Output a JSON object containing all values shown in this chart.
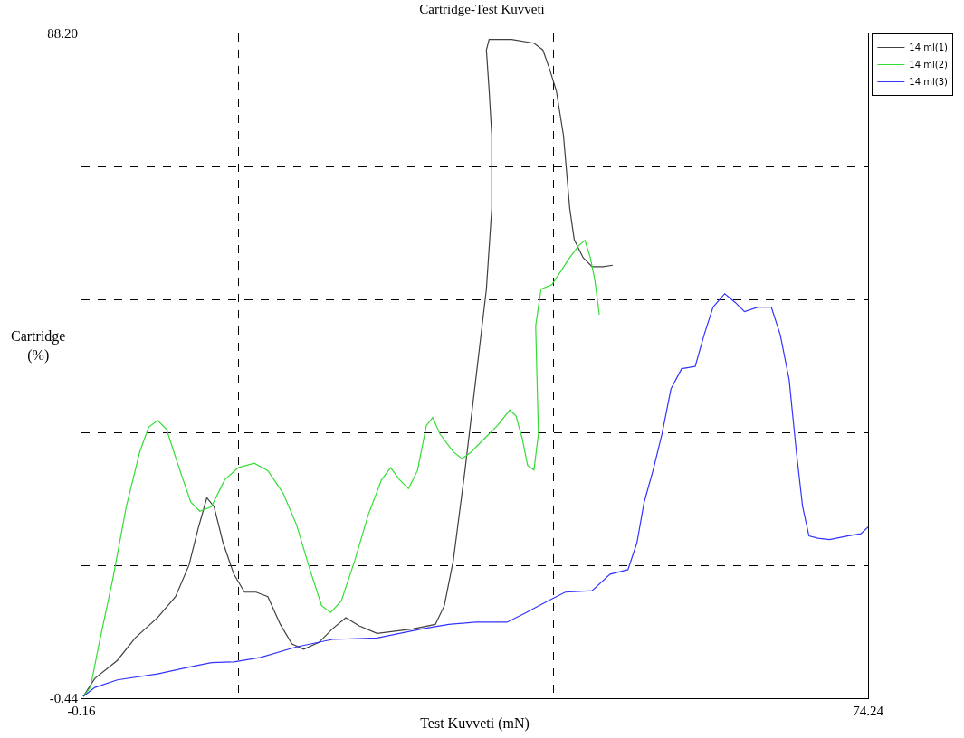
{
  "chart_data": {
    "type": "line",
    "title": "Cartridge-Test Kuvveti",
    "xlabel": "Test Kuvveti (mN)",
    "ylabel": "Cartridge (%)",
    "xlim": [
      -0.16,
      74.24
    ],
    "xticks": [
      -0.16,
      {
        "value": 14.72,
        "label": null
      },
      {
        "value": 29.6,
        "label": null
      },
      {
        "value": 44.48,
        "label": null
      },
      {
        "value": 59.36,
        "label": null
      },
      74.24
    ],
    "ylim": [
      -0.44,
      88.2
    ],
    "yticks": [
      -0.44,
      {
        "value": 17.288,
        "label": null
      },
      {
        "value": 35.016,
        "label": null
      },
      {
        "value": 52.744,
        "label": null
      },
      {
        "value": 70.472,
        "label": null
      },
      {
        "value": 88.2,
        "label": "88.20"
      }
    ],
    "grid": true,
    "legend": "top right",
    "line_style": "solid",
    "marker": "none",
    "series": [
      {
        "name": "14 ml(1)",
        "color": "#404040",
        "x": [
          0.01,
          1.11,
          3.23,
          4.92,
          7.04,
          8.74,
          10.01,
          10.86,
          11.7,
          12.38,
          13.23,
          14.25,
          15.26,
          16.36,
          17.47,
          18.65,
          19.75,
          20.86,
          22.3,
          23.57,
          24.84,
          26.11,
          27.8,
          29.5,
          31.19,
          33.31,
          34.16,
          35.01,
          36.11,
          37.13,
          38.14,
          38.65,
          38.65,
          38.4,
          38.14,
          38.4,
          40.52,
          42.64,
          43.48,
          44.08,
          44.75,
          45.43,
          46.02,
          46.45,
          47.29,
          48.14,
          49.16,
          50.09
        ],
        "values": [
          -0.2,
          2.2,
          4.6,
          7.6,
          10.3,
          13.1,
          17.3,
          22.1,
          26.3,
          25.1,
          20.3,
          16.1,
          13.7,
          13.7,
          13.1,
          9.4,
          6.8,
          6.1,
          7,
          8.8,
          10.3,
          9.2,
          8.2,
          8.5,
          8.8,
          9.4,
          11.9,
          17.9,
          29.9,
          42,
          54.1,
          64.9,
          74.6,
          80.6,
          86,
          87.4,
          87.4,
          86.9,
          86,
          83.6,
          80.6,
          74.6,
          64.9,
          60.7,
          58.3,
          57.1,
          57.1,
          57.3
        ]
      },
      {
        "name": "14 ml(2)",
        "color": "#33dd33",
        "x": [
          0.01,
          0.69,
          1.53,
          2.81,
          4.08,
          5.35,
          6.2,
          7.04,
          7.89,
          9.16,
          10.18,
          11.03,
          12.13,
          13.4,
          14.67,
          16.19,
          17.47,
          18.91,
          20.18,
          21.45,
          22.55,
          23.4,
          24.41,
          25.69,
          26.96,
          28.23,
          29.08,
          29.92,
          30.77,
          31.62,
          32.46,
          33.06,
          33.74,
          35.01,
          35.85,
          36.7,
          37.97,
          39.24,
          40.35,
          40.94,
          41.53,
          42.04,
          42.64,
          43.06,
          42.8,
          43.31,
          44.33,
          45.18,
          46.02,
          46.87,
          47.46,
          47.97,
          48.4,
          48.82
        ],
        "values": [
          -0.2,
          1,
          7,
          15.5,
          25.1,
          32.4,
          35.7,
          36.6,
          35.4,
          29.9,
          25.7,
          24.5,
          25.1,
          28.7,
          30.3,
          30.9,
          29.9,
          26.9,
          22.7,
          16.7,
          11.9,
          11,
          12.5,
          17.9,
          24,
          28.7,
          30.3,
          28.7,
          27.5,
          29.9,
          35.9,
          37,
          34.8,
          32.4,
          31.5,
          32.4,
          34.2,
          36,
          38,
          37.2,
          34.2,
          30.6,
          30,
          34.8,
          49.2,
          54.1,
          54.7,
          56.5,
          58.3,
          59.9,
          60.6,
          58.3,
          55.3,
          50.7
        ]
      },
      {
        "name": "14 ml(3)",
        "color": "#3333ff",
        "x": [
          0.01,
          1.11,
          3.23,
          7.04,
          10.01,
          12.13,
          14.25,
          16.79,
          20.18,
          23.57,
          27.8,
          29.92,
          32.04,
          34.58,
          37.13,
          40.09,
          41.79,
          43.91,
          45.6,
          48.14,
          49.84,
          51.53,
          52.38,
          53.06,
          53.9,
          54.75,
          55.6,
          56.61,
          57.89,
          58.73,
          59.58,
          60.68,
          61.7,
          62.55,
          63.82,
          65.09,
          65.94,
          66.78,
          67.46,
          68.05,
          68.65,
          69.5,
          70.6,
          72.29,
          73.56,
          74.24
        ],
        "values": [
          -0.2,
          1,
          2,
          2.8,
          3.7,
          4.3,
          4.4,
          5,
          6.4,
          7.4,
          7.6,
          8.2,
          8.8,
          9.4,
          9.7,
          9.7,
          10.9,
          12.5,
          13.7,
          13.9,
          16.1,
          16.7,
          20.3,
          25.7,
          29.9,
          34.8,
          40.8,
          43.5,
          43.8,
          48,
          51.7,
          53.5,
          52.3,
          51.1,
          51.7,
          51.7,
          48,
          42,
          32.4,
          25.1,
          21.2,
          20.9,
          20.7,
          21.2,
          21.5,
          22.4
        ]
      }
    ]
  }
}
